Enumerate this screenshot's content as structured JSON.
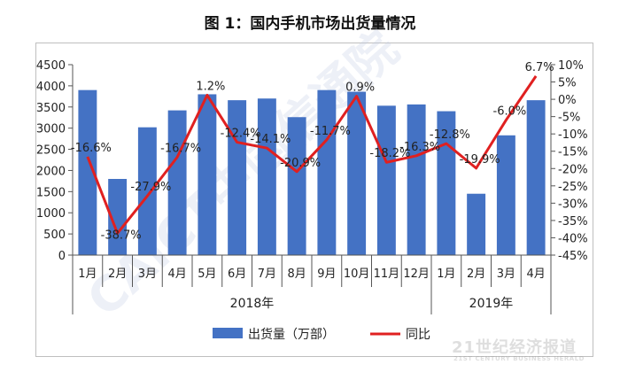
{
  "title": "图 1：国内手机市场出货量情况",
  "watermark": {
    "diagonal": "CAICT中国信通院",
    "brand": "21世纪经济报道",
    "brand_en": "21ST CENTURY BUSINESS HERALD"
  },
  "chart_data": {
    "type": "bar",
    "categories": [
      "1月",
      "2月",
      "3月",
      "4月",
      "5月",
      "6月",
      "7月",
      "8月",
      "9月",
      "10月",
      "11月",
      "12月",
      "1月",
      "2月",
      "3月",
      "4月"
    ],
    "groups": [
      {
        "label": "2018年",
        "start": 0,
        "end": 11
      },
      {
        "label": "2019年",
        "start": 12,
        "end": 15
      }
    ],
    "series": [
      {
        "name": "出货量（万部）",
        "type": "bar",
        "axis": "left",
        "color": "#4472c4",
        "values": [
          3900,
          1800,
          3020,
          3420,
          3800,
          3660,
          3700,
          3260,
          3900,
          3860,
          3530,
          3560,
          3400,
          1450,
          2830,
          3660
        ]
      },
      {
        "name": "同比",
        "type": "line",
        "axis": "right",
        "color": "#e02020",
        "values": [
          -16.6,
          -38.7,
          -27.9,
          -16.7,
          1.2,
          -12.4,
          -14.1,
          -20.9,
          -11.7,
          0.9,
          -18.2,
          -16.3,
          -12.8,
          -19.9,
          -6.0,
          6.7
        ],
        "labels": [
          "-16.6%",
          "-38.7%",
          "-27.9%",
          "-16.7%",
          "1.2%",
          "-12.4%",
          "-14.1%",
          "-20.9%",
          "-11.7%",
          "0.9%",
          "-18.2%",
          "-16.3%",
          "-12.8%",
          "-19.9%",
          "-6.0%",
          "6.7%"
        ]
      }
    ],
    "y_left": {
      "min": 0,
      "max": 4500,
      "step": 500,
      "ticks": [
        "0",
        "500",
        "1000",
        "1500",
        "2000",
        "2500",
        "3000",
        "3500",
        "4000",
        "4500"
      ]
    },
    "y_right": {
      "min": -45,
      "max": 10,
      "step": 5,
      "ticks": [
        "10%",
        "5%",
        "0%",
        "-5%",
        "-10%",
        "-15%",
        "-20%",
        "-25%",
        "-30%",
        "-35%",
        "-40%",
        "-45%"
      ]
    },
    "legend": {
      "position": "bottom",
      "entries": [
        "出货量（万部）",
        "同比"
      ]
    },
    "grid": false
  }
}
